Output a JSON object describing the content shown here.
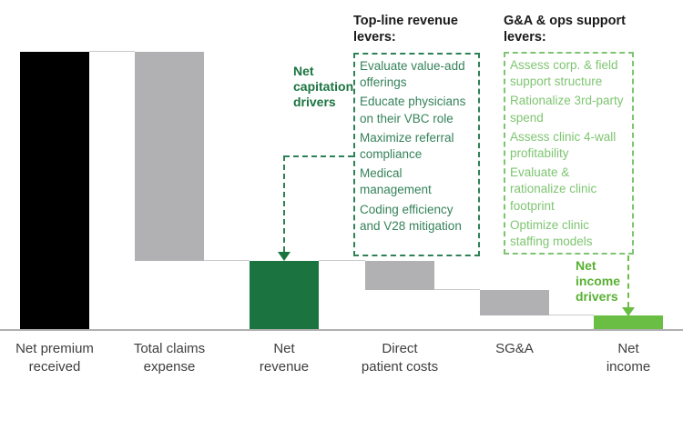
{
  "colors": {
    "black_bar": "#000000",
    "gray_bar": "#b1b1b3",
    "dark_green_bar": "#1b7440",
    "light_green_bar": "#6abe44",
    "box1_green": "#35825a",
    "box2_green": "#7ec571",
    "connector_gray": "#c9c9ca",
    "baseline_gray": "#b0b0b2"
  },
  "chart_data": {
    "type": "waterfall",
    "title": "",
    "xlabel": "",
    "ylabel": "",
    "value_unit": "% of net premium received (estimated from bar heights; chart shows no numeric axis)",
    "grid": false,
    "legend": false,
    "categories": [
      "Net premium received",
      "Total claims expense",
      "Net revenue",
      "Direct patient costs",
      "SG&A",
      "Net income"
    ],
    "bars": [
      {
        "label": "Net premium\nreceived",
        "role": "absolute",
        "value": 100,
        "color": "black_bar"
      },
      {
        "label": "Total claims\nexpense",
        "role": "decrease",
        "value": 75.5,
        "color": "gray_bar"
      },
      {
        "label": "Net\nrevenue",
        "role": "subtotal",
        "value": 24.5,
        "color": "dark_green_bar"
      },
      {
        "label": "Direct\npatient costs",
        "role": "decrease",
        "value": 10.5,
        "color": "gray_bar"
      },
      {
        "label": "SG&A",
        "role": "decrease",
        "value": 9.2,
        "color": "gray_bar"
      },
      {
        "label": "Net\nincome",
        "role": "total",
        "value": 4.8,
        "color": "light_green_bar"
      }
    ]
  },
  "annotations": {
    "cap_driver_label": "Net\ncapitation\ndrivers",
    "income_driver_label": "Net\nincome\ndrivers",
    "topline_header": "Top-line revenue\nlevers:",
    "topline_items": [
      "Evaluate value-add offerings",
      "Educate physicians on their VBC role",
      "Maximize referral compliance",
      "Medical management",
      "Coding efficiency and V28 mitigation"
    ],
    "ga_header": "G&A & ops support\nlevers:",
    "ga_items": [
      "Assess corp. & field support structure",
      "Rationalize 3rd-party spend",
      "Assess clinic 4-wall profitability",
      "Evaluate & rationalize clinic footprint",
      "Optimize clinic staffing models"
    ]
  }
}
